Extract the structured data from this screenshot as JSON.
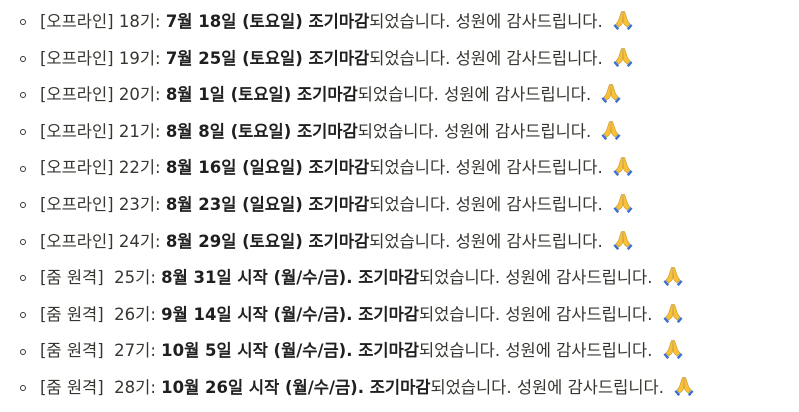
{
  "items": [
    {
      "prefix": "[오프라인] 18기: ",
      "date": "7월 18일 (토요일) 조기마감",
      "suffix": "되었습니다. 성원에 감사드립니다. ",
      "emoji": "folded-hands"
    },
    {
      "prefix": "[오프라인] 19기: ",
      "date": "7월 25일 (토요일) 조기마감",
      "suffix": "되었습니다. 성원에 감사드립니다. ",
      "emoji": "folded-hands"
    },
    {
      "prefix": "[오프라인] 20기: ",
      "date": "8월 1일 (토요일) 조기마감",
      "suffix": "되었습니다. 성원에 감사드립니다. ",
      "emoji": "folded-hands"
    },
    {
      "prefix": "[오프라인] 21기: ",
      "date": "8월 8일 (토요일) 조기마감",
      "suffix": "되었습니다. 성원에 감사드립니다. ",
      "emoji": "folded-hands"
    },
    {
      "prefix": "[오프라인] 22기: ",
      "date": "8월 16일 (일요일) 조기마감",
      "suffix": "되었습니다. 성원에 감사드립니다. ",
      "emoji": "folded-hands"
    },
    {
      "prefix": "[오프라인] 23기: ",
      "date": "8월 23일 (일요일) 조기마감",
      "suffix": "되었습니다. 성원에 감사드립니다. ",
      "emoji": "folded-hands"
    },
    {
      "prefix": "[오프라인] 24기: ",
      "date": "8월 29일 (토요일) 조기마감",
      "suffix": "되었습니다. 성원에 감사드립니다. ",
      "emoji": "folded-hands"
    },
    {
      "prefix": "[줌 원격]  25기: ",
      "date": "8월 31일 시작 (월/수/금). 조기마감",
      "suffix": "되었습니다. 성원에 감사드립니다. ",
      "emoji": "folded-hands"
    },
    {
      "prefix": "[줌 원격]  26기: ",
      "date": "9월 14일 시작 (월/수/금). 조기마감",
      "suffix": "되었습니다. 성원에 감사드립니다. ",
      "emoji": "folded-hands"
    },
    {
      "prefix": "[줌 원격]  27기: ",
      "date": "10월 5일 시작 (월/수/금). 조기마감",
      "suffix": "되었습니다. 성원에 감사드립니다. ",
      "emoji": "folded-hands"
    },
    {
      "prefix": "[줌 원격]  28기: ",
      "date": "10월 26일 시작 (월/수/금). 조기마감",
      "suffix": "되었습니다. 성원에 감사드립니다. ",
      "emoji": "folded-hands"
    }
  ],
  "colors": {
    "text": "#37352f",
    "bold_text": "#1f1f1f",
    "emoji_skin": "#f7c13a",
    "emoji_sleeve": "#3b6fd1"
  }
}
